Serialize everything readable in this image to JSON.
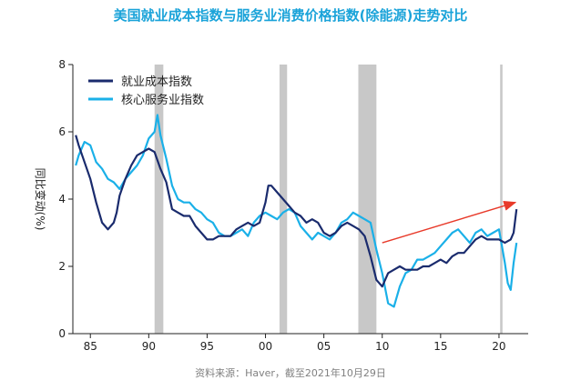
{
  "chart_data": {
    "type": "line",
    "title": "美国就业成本指数与服务业消费价格指数(除能源)走势对比",
    "ylabel": "同比变动(%)",
    "xlabel": "",
    "source": "资料来源：Haver，截至2021年10月29日",
    "xlim": [
      1983.5,
      2022.5
    ],
    "ylim": [
      0,
      8
    ],
    "yticks": [
      0,
      2,
      4,
      6,
      8
    ],
    "xticks": [
      1985,
      1990,
      1995,
      2000,
      2005,
      2010,
      2015,
      2020
    ],
    "xtick_labels": [
      "85",
      "90",
      "95",
      "00",
      "05",
      "10",
      "15",
      "20"
    ],
    "grid": false,
    "legend_position": "top-left",
    "recessions": [
      [
        1990.5,
        1991.25
      ],
      [
        2001.2,
        2001.85
      ],
      [
        2007.95,
        2009.5
      ],
      [
        2020.1,
        2020.3
      ]
    ],
    "series": [
      {
        "name": "就业成本指数",
        "color": "#1a2b6d",
        "x": [
          1983.75,
          1984.0,
          1984.5,
          1985.0,
          1985.5,
          1986.0,
          1986.5,
          1987.0,
          1987.25,
          1987.5,
          1988.0,
          1988.5,
          1989.0,
          1989.5,
          1990.0,
          1990.5,
          1991.0,
          1991.5,
          1992.0,
          1992.5,
          1993.0,
          1993.5,
          1994.0,
          1994.5,
          1995.0,
          1995.5,
          1996.0,
          1996.5,
          1997.0,
          1997.5,
          1998.0,
          1998.5,
          1999.0,
          1999.5,
          2000.0,
          2000.25,
          2000.5,
          2001.0,
          2001.5,
          2002.0,
          2002.5,
          2003.0,
          2003.5,
          2004.0,
          2004.5,
          2005.0,
          2005.5,
          2006.0,
          2006.5,
          2007.0,
          2007.5,
          2008.0,
          2008.5,
          2009.0,
          2009.5,
          2010.0,
          2010.5,
          2011.0,
          2011.5,
          2012.0,
          2012.5,
          2013.0,
          2013.5,
          2014.0,
          2014.5,
          2015.0,
          2015.5,
          2016.0,
          2016.5,
          2017.0,
          2017.5,
          2018.0,
          2018.5,
          2019.0,
          2019.5,
          2020.0,
          2020.5,
          2021.0,
          2021.25,
          2021.5
        ],
        "values": [
          5.9,
          5.6,
          5.1,
          4.6,
          3.9,
          3.3,
          3.1,
          3.3,
          3.6,
          4.1,
          4.6,
          5.0,
          5.3,
          5.4,
          5.5,
          5.4,
          4.9,
          4.5,
          3.7,
          3.6,
          3.5,
          3.5,
          3.2,
          3.0,
          2.8,
          2.8,
          2.9,
          2.9,
          2.9,
          3.1,
          3.2,
          3.3,
          3.2,
          3.3,
          3.9,
          4.4,
          4.4,
          4.2,
          4.0,
          3.8,
          3.6,
          3.5,
          3.3,
          3.4,
          3.3,
          3.0,
          2.9,
          3.0,
          3.2,
          3.3,
          3.2,
          3.1,
          2.9,
          2.3,
          1.6,
          1.4,
          1.8,
          1.9,
          2.0,
          1.9,
          1.9,
          1.9,
          2.0,
          2.0,
          2.1,
          2.2,
          2.1,
          2.3,
          2.4,
          2.4,
          2.6,
          2.8,
          2.9,
          2.8,
          2.8,
          2.8,
          2.7,
          2.8,
          3.0,
          3.7
        ]
      },
      {
        "name": "核心服务业指数",
        "color": "#1ab0e8",
        "x": [
          1983.75,
          1984.0,
          1984.5,
          1985.0,
          1985.5,
          1986.0,
          1986.5,
          1987.0,
          1987.5,
          1988.0,
          1988.5,
          1989.0,
          1989.5,
          1990.0,
          1990.5,
          1990.75,
          1991.0,
          1991.5,
          1992.0,
          1992.5,
          1993.0,
          1993.5,
          1994.0,
          1994.5,
          1995.0,
          1995.5,
          1996.0,
          1996.5,
          1997.0,
          1997.5,
          1998.0,
          1998.5,
          1999.0,
          1999.5,
          2000.0,
          2000.5,
          2001.0,
          2001.5,
          2002.0,
          2002.5,
          2003.0,
          2003.5,
          2004.0,
          2004.5,
          2005.0,
          2005.5,
          2006.0,
          2006.5,
          2007.0,
          2007.5,
          2008.0,
          2008.5,
          2009.0,
          2009.5,
          2010.0,
          2010.5,
          2011.0,
          2011.5,
          2012.0,
          2012.5,
          2013.0,
          2013.5,
          2014.0,
          2014.5,
          2015.0,
          2015.5,
          2016.0,
          2016.5,
          2017.0,
          2017.5,
          2018.0,
          2018.5,
          2019.0,
          2019.5,
          2020.0,
          2020.25,
          2020.5,
          2020.75,
          2021.0,
          2021.25,
          2021.5
        ],
        "values": [
          5.0,
          5.3,
          5.7,
          5.6,
          5.1,
          4.9,
          4.6,
          4.5,
          4.3,
          4.6,
          4.8,
          5.0,
          5.3,
          5.8,
          6.0,
          6.5,
          5.9,
          5.2,
          4.4,
          4.0,
          3.9,
          3.9,
          3.7,
          3.6,
          3.4,
          3.3,
          3.0,
          2.9,
          2.9,
          3.0,
          3.1,
          2.9,
          3.3,
          3.5,
          3.6,
          3.5,
          3.4,
          3.6,
          3.7,
          3.6,
          3.2,
          3.0,
          2.8,
          3.0,
          2.9,
          2.8,
          3.0,
          3.3,
          3.4,
          3.6,
          3.5,
          3.4,
          3.3,
          2.5,
          1.8,
          0.9,
          0.8,
          1.4,
          1.8,
          1.9,
          2.2,
          2.2,
          2.3,
          2.4,
          2.6,
          2.8,
          3.0,
          3.1,
          2.9,
          2.7,
          3.0,
          3.1,
          2.9,
          3.0,
          3.1,
          2.6,
          2.1,
          1.5,
          1.3,
          2.1,
          2.7
        ]
      }
    ],
    "annotations": [
      {
        "type": "arrow",
        "color": "#e83a2a",
        "from": [
          2010.0,
          2.7
        ],
        "to": [
          2021.4,
          3.9
        ]
      }
    ]
  }
}
